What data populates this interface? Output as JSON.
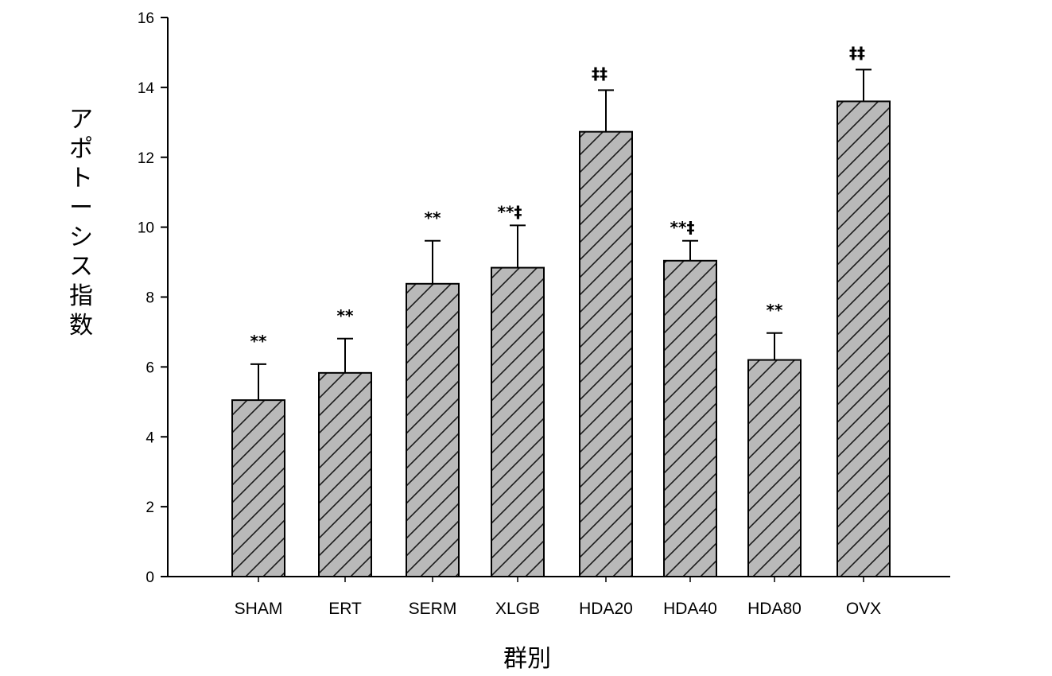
{
  "chart_data": {
    "type": "bar",
    "title": "",
    "xlabel": "群別",
    "ylabel": "アポトーシス指数",
    "ylim": [
      0,
      16
    ],
    "yticks": [
      0,
      2,
      4,
      6,
      8,
      10,
      12,
      14,
      16
    ],
    "grid": false,
    "legend": null,
    "categories": [
      "SHAM",
      "ERT",
      "SERM",
      "XLGB",
      "HDA20",
      "HDA40",
      "HDA80",
      "OVX"
    ],
    "values": [
      5.05,
      5.83,
      8.38,
      8.84,
      12.73,
      9.04,
      6.2,
      13.6
    ],
    "error_upper": [
      6.08,
      6.81,
      9.61,
      10.05,
      13.92,
      9.61,
      6.97,
      14.51
    ],
    "error_bars": [
      1.03,
      0.98,
      1.23,
      1.21,
      1.19,
      0.57,
      0.77,
      0.91
    ],
    "annotations": [
      "**",
      "**",
      "**",
      "**‡",
      "‡‡",
      "**‡",
      "**",
      "‡‡"
    ],
    "bar_fill": "hatched-gray"
  },
  "colors": {
    "axis": "#000000",
    "bar_fill": "#b8b8b8",
    "hatch": "#1a1a1a",
    "background": "#ffffff"
  }
}
